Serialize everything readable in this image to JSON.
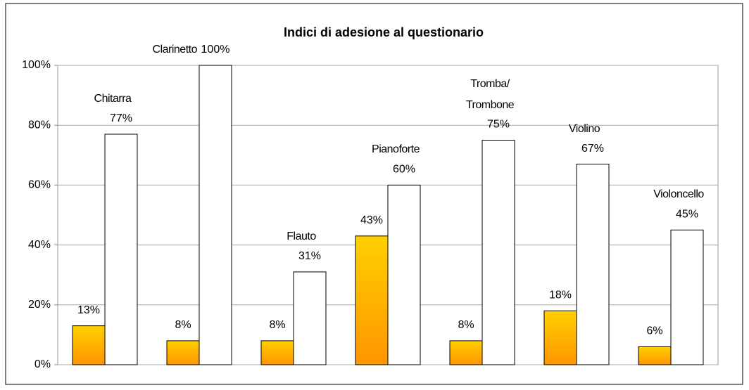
{
  "chart_data": {
    "type": "bar",
    "title": "Indici di adesione al questionario",
    "categories": [
      "Chitarra",
      "Clarinetto",
      "Flauto",
      "Pianoforte",
      "Tromba/ Trombone",
      "Violino",
      "Violoncello"
    ],
    "series": [
      {
        "color": "#ffb300",
        "values": [
          13,
          8,
          8,
          43,
          8,
          18,
          6
        ],
        "value_labels": [
          "13%",
          "8%",
          "8%",
          "43%",
          "8%",
          "18%",
          "6%"
        ]
      },
      {
        "color": "#ffffff",
        "values": [
          77,
          100,
          31,
          60,
          75,
          67,
          45
        ],
        "value_labels": [
          "77%",
          "100%",
          "31%",
          "60%",
          "75%",
          "67%",
          "45%"
        ]
      }
    ],
    "ylim": [
      0,
      100
    ],
    "yticks": [
      {
        "value": 0,
        "label": "0%"
      },
      {
        "value": 20,
        "label": "20%"
      },
      {
        "value": 40,
        "label": "40%"
      },
      {
        "value": 60,
        "label": "60%"
      },
      {
        "value": 80,
        "label": "80%"
      },
      {
        "value": 100,
        "label": "100%"
      }
    ],
    "grid": true
  }
}
